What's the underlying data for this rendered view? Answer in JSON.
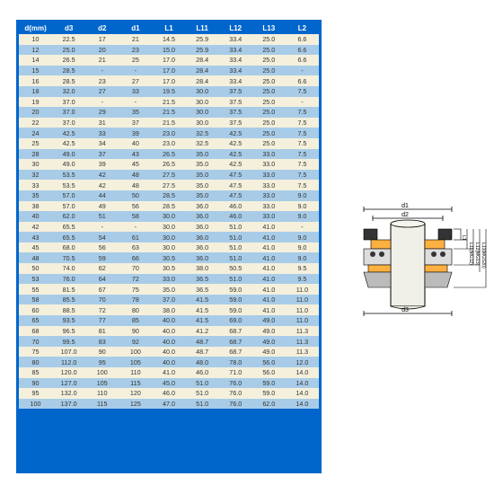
{
  "table": {
    "headers": [
      "d(mm)",
      "d3",
      "d2",
      "d1",
      "L1",
      "L11",
      "L12",
      "L13",
      "L2"
    ],
    "rows": [
      [
        "10",
        "22.5",
        "17",
        "21",
        "14.5",
        "25.9",
        "33.4",
        "25.0",
        "6.6"
      ],
      [
        "12",
        "25.0",
        "20",
        "23",
        "15.0",
        "25.9",
        "33.4",
        "25.0",
        "6.6"
      ],
      [
        "14",
        "26.5",
        "21",
        "25",
        "17.0",
        "28.4",
        "33.4",
        "25.0",
        "6.6"
      ],
      [
        "15",
        "28.5",
        "-",
        "-",
        "17.0",
        "28.4",
        "33.4",
        "25.0",
        "-"
      ],
      [
        "16",
        "28.5",
        "23",
        "27",
        "17.0",
        "28.4",
        "33.4",
        "25.0",
        "6.6"
      ],
      [
        "18",
        "32.0",
        "27",
        "33",
        "19.5",
        "30.0",
        "37.5",
        "25.0",
        "7.5"
      ],
      [
        "19",
        "37.0",
        "-",
        "-",
        "21.5",
        "30.0",
        "37.5",
        "25.0",
        "-"
      ],
      [
        "20",
        "37.0",
        "29",
        "35",
        "21.5",
        "30.0",
        "37.5",
        "25.0",
        "7.5"
      ],
      [
        "22",
        "37.0",
        "31",
        "37",
        "21.5",
        "30.0",
        "37.5",
        "25.0",
        "7.5"
      ],
      [
        "24",
        "42.5",
        "33",
        "39",
        "23.0",
        "32.5",
        "42.5",
        "25.0",
        "7.5"
      ],
      [
        "25",
        "42.5",
        "34",
        "40",
        "23.0",
        "32.5",
        "42.5",
        "25.0",
        "7.5"
      ],
      [
        "28",
        "49.0",
        "37",
        "43",
        "26.5",
        "35.0",
        "42.5",
        "33.0",
        "7.5"
      ],
      [
        "30",
        "49.0",
        "39",
        "45",
        "26.5",
        "35.0",
        "42.5",
        "33.0",
        "7.5"
      ],
      [
        "32",
        "53.5",
        "42",
        "48",
        "27.5",
        "35.0",
        "47.5",
        "33.0",
        "7.5"
      ],
      [
        "33",
        "53.5",
        "42",
        "48",
        "27.5",
        "35.0",
        "47.5",
        "33.0",
        "7.5"
      ],
      [
        "35",
        "57.0",
        "44",
        "50",
        "28.5",
        "35.0",
        "47.5",
        "33.0",
        "9.0"
      ],
      [
        "38",
        "57.0",
        "49",
        "56",
        "28.5",
        "36.0",
        "46.0",
        "33.0",
        "9.0"
      ],
      [
        "40",
        "62.0",
        "51",
        "58",
        "30.0",
        "36.0",
        "46.0",
        "33.0",
        "9.0"
      ],
      [
        "42",
        "65.5",
        "-",
        "-",
        "30.0",
        "36.0",
        "51.0",
        "41.0",
        "-"
      ],
      [
        "43",
        "65.5",
        "54",
        "61",
        "30.0",
        "36.0",
        "51.0",
        "41.0",
        "9.0"
      ],
      [
        "45",
        "68.0",
        "56",
        "63",
        "30.0",
        "36.0",
        "51.0",
        "41.0",
        "9.0"
      ],
      [
        "48",
        "70.5",
        "59",
        "66",
        "30.5",
        "36.0",
        "51.0",
        "41.0",
        "9.0"
      ],
      [
        "50",
        "74.0",
        "62",
        "70",
        "30.5",
        "38.0",
        "50.5",
        "41.0",
        "9.5"
      ],
      [
        "53",
        "76.0",
        "64",
        "72",
        "33.0",
        "36.5",
        "51.0",
        "41.0",
        "9.5"
      ],
      [
        "55",
        "81.5",
        "67",
        "75",
        "35.0",
        "36.5",
        "59.0",
        "41.0",
        "11.0"
      ],
      [
        "58",
        "85.5",
        "70",
        "78",
        "37.0",
        "41.5",
        "59.0",
        "41.0",
        "11.0"
      ],
      [
        "60",
        "88.5",
        "72",
        "80",
        "38.0",
        "41.5",
        "59.0",
        "41.0",
        "11.0"
      ],
      [
        "65",
        "93.5",
        "77",
        "85",
        "40.0",
        "41.5",
        "69.0",
        "49.0",
        "11.0"
      ],
      [
        "68",
        "96.5",
        "81",
        "90",
        "40.0",
        "41.2",
        "68.7",
        "49.0",
        "11.3"
      ],
      [
        "70",
        "99.5",
        "83",
        "92",
        "40.0",
        "48.7",
        "68.7",
        "49.0",
        "11.3"
      ],
      [
        "75",
        "107.0",
        "90",
        "100",
        "40.0",
        "48.7",
        "68.7",
        "49.0",
        "11.3"
      ],
      [
        "80",
        "112.0",
        "95",
        "105",
        "40.0",
        "48.0",
        "78.0",
        "56.0",
        "12.0"
      ],
      [
        "85",
        "120.0",
        "100",
        "110",
        "41.0",
        "46.0",
        "71.0",
        "56.0",
        "14.0"
      ],
      [
        "90",
        "127.0",
        "105",
        "115",
        "45.0",
        "51.0",
        "76.0",
        "59.0",
        "14.0"
      ],
      [
        "95",
        "132.0",
        "110",
        "120",
        "46.0",
        "51.0",
        "76.0",
        "59.0",
        "14.0"
      ],
      [
        "100",
        "137.0",
        "115",
        "125",
        "47.0",
        "51.0",
        "76.0",
        "62.0",
        "14.0"
      ]
    ],
    "header_bg": "#0066cc",
    "light_bg": "#f5f0dc",
    "dark_bg": "#a8cce8"
  },
  "diagram": {
    "labels": {
      "d1": "d1",
      "d2": "d2",
      "d3": "d3",
      "L1": "L1",
      "L11": "L11(MG12)",
      "L12": "L12(MG13)",
      "L13": "L13(MGS20)"
    }
  }
}
